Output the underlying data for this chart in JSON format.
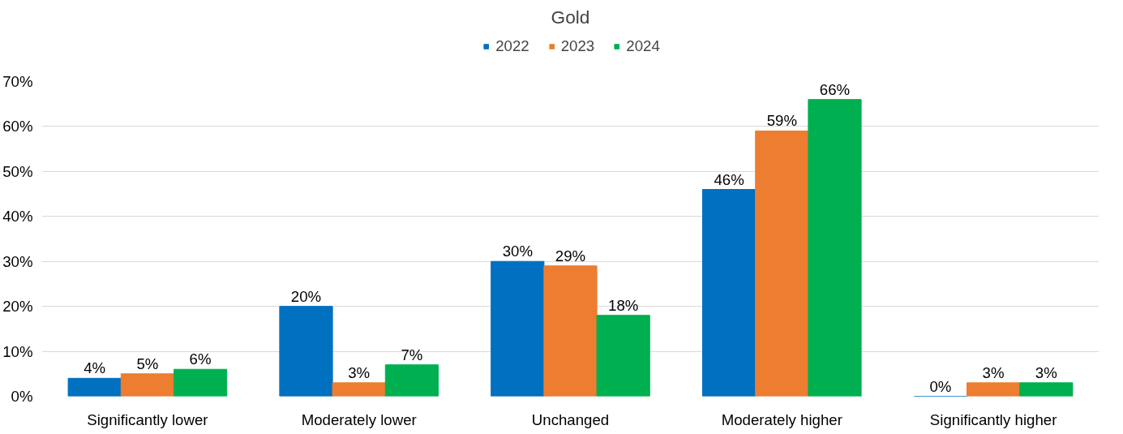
{
  "chart_data": {
    "type": "bar",
    "title": "Gold",
    "categories": [
      "Significantly lower",
      "Moderately lower",
      "Unchanged",
      "Moderately higher",
      "Significantly higher"
    ],
    "series": [
      {
        "name": "2022",
        "color": "#0070c0",
        "values": [
          4,
          20,
          30,
          46,
          0
        ],
        "value_labels": [
          "4%",
          "20%",
          "30%",
          "46%",
          "0%"
        ]
      },
      {
        "name": "2023",
        "color": "#ed7d31",
        "values": [
          5,
          3,
          29,
          59,
          3
        ],
        "value_labels": [
          "5%",
          "3%",
          "29%",
          "59%",
          "3%"
        ]
      },
      {
        "name": "2024",
        "color": "#00b050",
        "values": [
          6,
          7,
          18,
          66,
          3
        ],
        "value_labels": [
          "6%",
          "7%",
          "18%",
          "66%",
          "3%"
        ]
      }
    ],
    "ylim": [
      0,
      70
    ],
    "yticks": [
      {
        "value": 0,
        "label": "0%"
      },
      {
        "value": 10,
        "label": "10%"
      },
      {
        "value": 20,
        "label": "20%"
      },
      {
        "value": 30,
        "label": "30%"
      },
      {
        "value": 40,
        "label": "40%"
      },
      {
        "value": 50,
        "label": "50%"
      },
      {
        "value": 60,
        "label": "60%"
      },
      {
        "value": 70,
        "label": "70%"
      }
    ],
    "grid": "y",
    "legend": "top"
  }
}
